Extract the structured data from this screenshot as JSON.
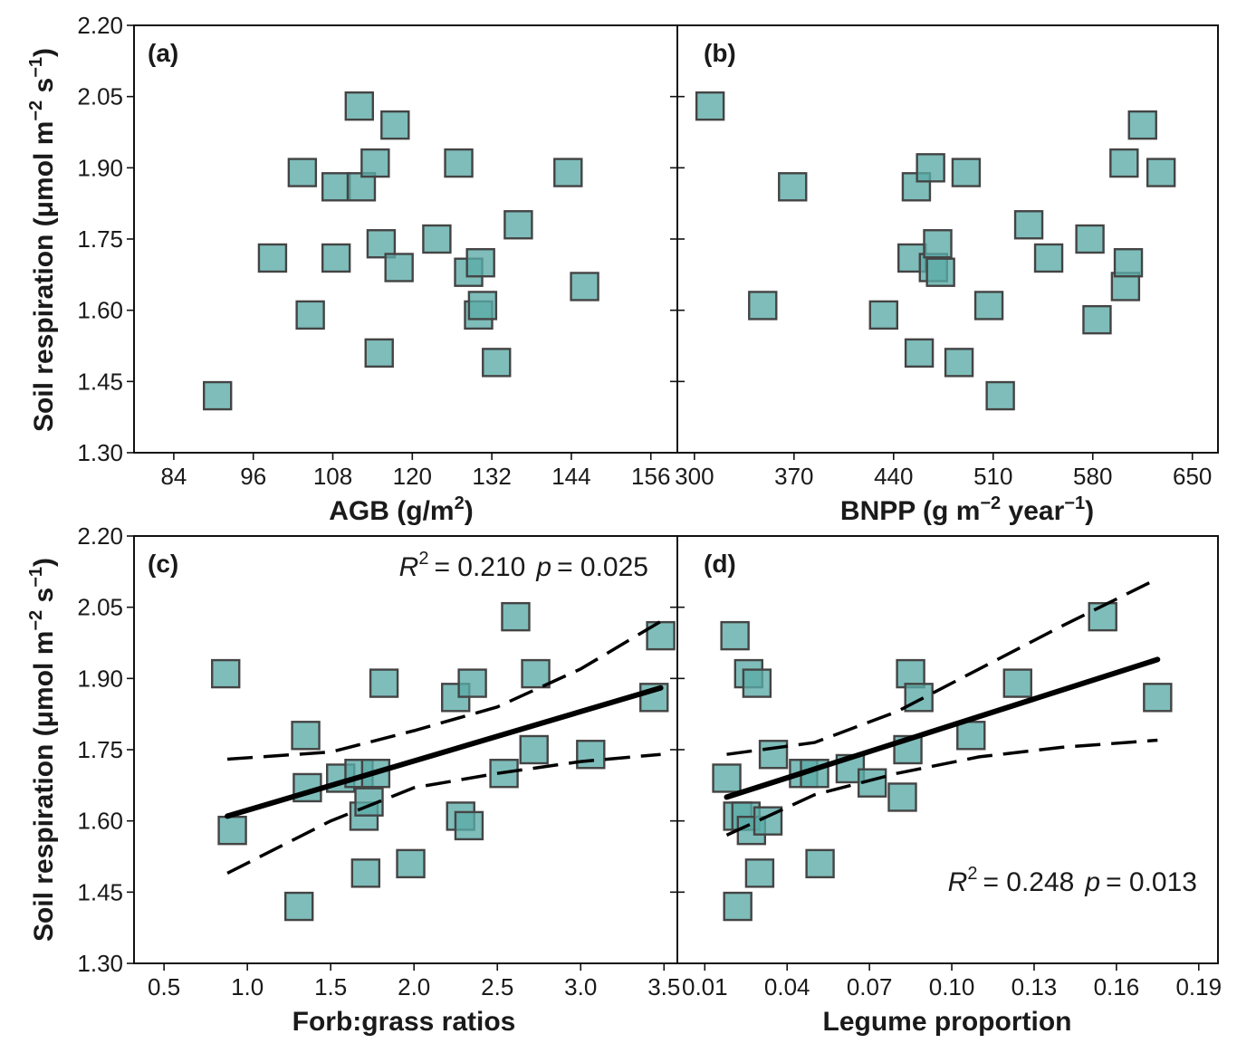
{
  "chart_data": [
    {
      "type": "scatter",
      "panel_label": "(a)",
      "xlabel": "AGB (g/m²)",
      "ylabel": "Soil respiration (μmol m⁻² s⁻¹)",
      "xlim": [
        78,
        160
      ],
      "ylim": [
        1.3,
        2.2
      ],
      "xticks": [
        84,
        96,
        108,
        120,
        132,
        144,
        156
      ],
      "yticks": [
        1.3,
        1.45,
        1.6,
        1.75,
        1.9,
        2.05,
        2.2
      ],
      "points": [
        [
          90.6,
          1.42
        ],
        [
          98.9,
          1.71
        ],
        [
          103.4,
          1.89
        ],
        [
          104.6,
          1.59
        ],
        [
          108.5,
          1.71
        ],
        [
          108.5,
          1.86
        ],
        [
          112.0,
          2.03
        ],
        [
          112.3,
          1.86
        ],
        [
          114.4,
          1.91
        ],
        [
          115.0,
          1.51
        ],
        [
          115.3,
          1.74
        ],
        [
          117.4,
          1.99
        ],
        [
          118.0,
          1.69
        ],
        [
          123.7,
          1.75
        ],
        [
          127.0,
          1.91
        ],
        [
          128.5,
          1.68
        ],
        [
          130.0,
          1.59
        ],
        [
          130.3,
          1.7
        ],
        [
          130.6,
          1.61
        ],
        [
          132.7,
          1.49
        ],
        [
          136.0,
          1.78
        ],
        [
          143.5,
          1.89
        ],
        [
          146.0,
          1.65
        ]
      ],
      "grid": false
    },
    {
      "type": "scatter",
      "panel_label": "(b)",
      "xlabel": "BNPP (g m⁻² year⁻¹)",
      "ylabel": "",
      "xlim": [
        288,
        668
      ],
      "ylim": [
        1.3,
        2.2
      ],
      "xticks": [
        300,
        370,
        440,
        510,
        580,
        650
      ],
      "xtick_labels": [
        "300",
        "370",
        "440",
        "510",
        "580",
        "650"
      ],
      "yticks": [
        1.3,
        1.45,
        1.6,
        1.75,
        1.9,
        2.05,
        2.2
      ],
      "points": [
        [
          311,
          2.03
        ],
        [
          348,
          1.61
        ],
        [
          369,
          1.86
        ],
        [
          433,
          1.59
        ],
        [
          453,
          1.71
        ],
        [
          456,
          1.86
        ],
        [
          458,
          1.51
        ],
        [
          466,
          1.9
        ],
        [
          468,
          1.69
        ],
        [
          471,
          1.74
        ],
        [
          473,
          1.68
        ],
        [
          486,
          1.49
        ],
        [
          491,
          1.89
        ],
        [
          507,
          1.61
        ],
        [
          515,
          1.42
        ],
        [
          535,
          1.78
        ],
        [
          549,
          1.71
        ],
        [
          578,
          1.75
        ],
        [
          583,
          1.58
        ],
        [
          602,
          1.91
        ],
        [
          603,
          1.65
        ],
        [
          605,
          1.7
        ],
        [
          615,
          1.99
        ],
        [
          628,
          1.89
        ]
      ],
      "grid": false
    },
    {
      "type": "scatter",
      "panel_label": "(c)",
      "xlabel": "Forb:grass ratios",
      "ylabel": "Soil respiration (μmol m⁻² s⁻¹)",
      "xlim": [
        0.32,
        3.58
      ],
      "ylim": [
        1.3,
        2.2
      ],
      "xticks": [
        0.5,
        1.0,
        1.5,
        2.0,
        2.5,
        3.0,
        3.5
      ],
      "xtick_labels": [
        "0.5",
        "1.0",
        "1.5",
        "2.0",
        "2.5",
        "3.0",
        "3.5"
      ],
      "yticks": [
        1.3,
        1.45,
        1.6,
        1.75,
        1.9,
        2.05,
        2.2
      ],
      "annotation": {
        "r2_label": "R",
        "r2_sup": "2",
        "r2_value": "= 0.210",
        "p_label": "p",
        "p_value": "= 0.025"
      },
      "points": [
        [
          0.87,
          1.91
        ],
        [
          0.91,
          1.58
        ],
        [
          1.31,
          1.42
        ],
        [
          1.35,
          1.78
        ],
        [
          1.36,
          1.67
        ],
        [
          1.56,
          1.69
        ],
        [
          1.67,
          1.7
        ],
        [
          1.7,
          1.61
        ],
        [
          1.71,
          1.49
        ],
        [
          1.73,
          1.64
        ],
        [
          1.77,
          1.7
        ],
        [
          1.82,
          1.89
        ],
        [
          1.98,
          1.51
        ],
        [
          2.25,
          1.86
        ],
        [
          2.28,
          1.61
        ],
        [
          2.33,
          1.59
        ],
        [
          2.35,
          1.89
        ],
        [
          2.54,
          1.7
        ],
        [
          2.61,
          2.03
        ],
        [
          2.72,
          1.75
        ],
        [
          2.73,
          1.91
        ],
        [
          3.06,
          1.74
        ],
        [
          3.44,
          1.86
        ],
        [
          3.48,
          1.99
        ]
      ],
      "fit": {
        "x": [
          0.88,
          3.48
        ],
        "y": [
          1.61,
          1.88
        ]
      },
      "ci_upper": {
        "x": [
          0.88,
          1.5,
          2.0,
          2.5,
          3.0,
          3.48
        ],
        "y": [
          1.73,
          1.745,
          1.79,
          1.84,
          1.92,
          2.02
        ]
      },
      "ci_lower": {
        "x": [
          0.88,
          1.5,
          2.0,
          2.5,
          3.0,
          3.48
        ],
        "y": [
          1.49,
          1.6,
          1.67,
          1.7,
          1.725,
          1.74
        ]
      },
      "grid": false
    },
    {
      "type": "scatter",
      "panel_label": "(d)",
      "xlabel": "Legume proportion",
      "ylabel": "",
      "xlim": [
        0.0,
        0.197
      ],
      "ylim": [
        1.3,
        2.2
      ],
      "xticks": [
        0.01,
        0.04,
        0.07,
        0.1,
        0.13,
        0.16,
        0.19
      ],
      "xtick_labels": [
        "0.01",
        "0.04",
        "0.07",
        "0.10",
        "0.13",
        "0.16",
        "0.19"
      ],
      "yticks": [
        1.3,
        1.45,
        1.6,
        1.75,
        1.9,
        2.05,
        2.2
      ],
      "annotation": {
        "r2_label": "R",
        "r2_sup": "2",
        "r2_value": "= 0.248",
        "p_label": "p",
        "p_value": "= 0.013"
      },
      "points": [
        [
          0.018,
          1.69
        ],
        [
          0.021,
          1.99
        ],
        [
          0.022,
          1.61
        ],
        [
          0.022,
          1.42
        ],
        [
          0.025,
          1.61
        ],
        [
          0.026,
          1.91
        ],
        [
          0.027,
          1.58
        ],
        [
          0.029,
          1.89
        ],
        [
          0.03,
          1.49
        ],
        [
          0.033,
          1.6
        ],
        [
          0.035,
          1.74
        ],
        [
          0.046,
          1.7
        ],
        [
          0.05,
          1.7
        ],
        [
          0.052,
          1.51
        ],
        [
          0.063,
          1.71
        ],
        [
          0.071,
          1.68
        ],
        [
          0.082,
          1.65
        ],
        [
          0.084,
          1.75
        ],
        [
          0.085,
          1.91
        ],
        [
          0.088,
          1.86
        ],
        [
          0.107,
          1.78
        ],
        [
          0.124,
          1.89
        ],
        [
          0.155,
          2.03
        ],
        [
          0.175,
          1.86
        ]
      ],
      "fit": {
        "x": [
          0.018,
          0.175
        ],
        "y": [
          1.65,
          1.94
        ]
      },
      "ci_upper": {
        "x": [
          0.018,
          0.05,
          0.08,
          0.11,
          0.14,
          0.175
        ],
        "y": [
          1.74,
          1.765,
          1.83,
          1.92,
          2.01,
          2.11
        ]
      },
      "ci_lower": {
        "x": [
          0.018,
          0.05,
          0.08,
          0.11,
          0.14,
          0.175
        ],
        "y": [
          1.57,
          1.655,
          1.7,
          1.735,
          1.755,
          1.77
        ]
      },
      "grid": false
    }
  ]
}
